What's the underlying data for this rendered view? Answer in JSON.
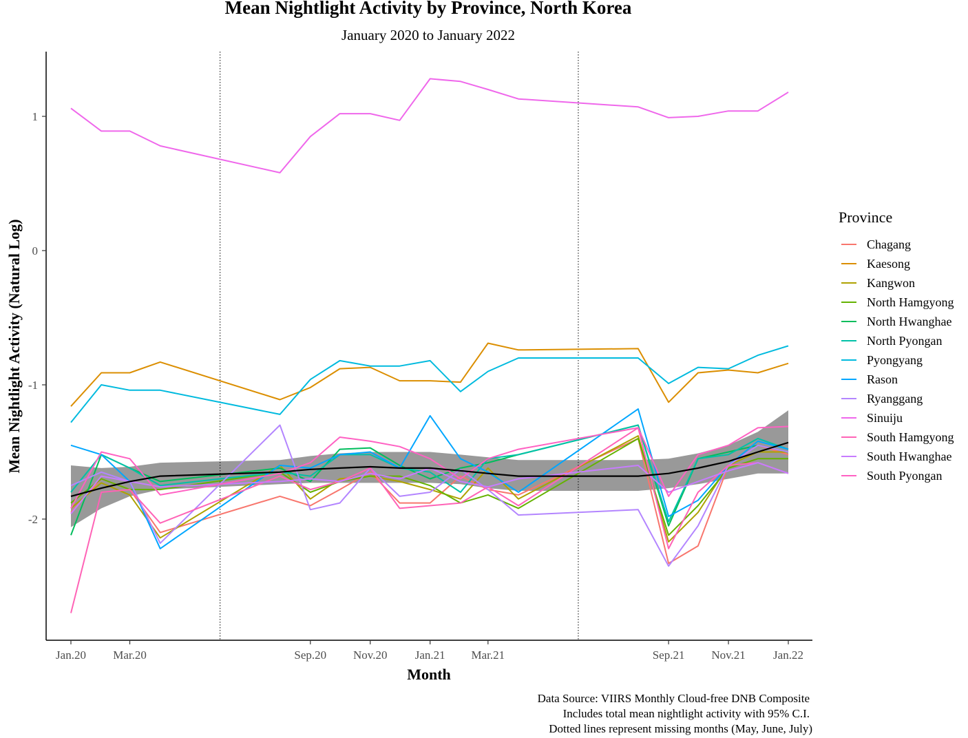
{
  "chart_data": {
    "type": "line",
    "title": "Mean Nightlight Activity by Province, North Korea",
    "subtitle": "January 2020 to January 2022",
    "xlabel": "Month",
    "ylabel": "Mean Nightlight Activity (Natural Log)",
    "x_tick_labels": [
      "Jan.20",
      "Mar.20",
      "Sep.20",
      "Nov.20",
      "Jan.21",
      "Mar.21",
      "Sep.21",
      "Nov.21",
      "Jan.22"
    ],
    "y_ticks": [
      1,
      0,
      -1,
      -2
    ],
    "ylim": [
      -2.88,
      1.48
    ],
    "x_months": [
      "2020-01",
      "2020-02",
      "2020-03",
      "2020-04",
      "2020-08",
      "2020-09",
      "2020-10",
      "2020-11",
      "2020-12",
      "2021-01",
      "2021-02",
      "2021-03",
      "2021-04",
      "2021-08",
      "2021-09",
      "2021-10",
      "2021-11",
      "2021-12",
      "2022-01"
    ],
    "missing_months_markers": [
      "2020-06",
      "2021-06"
    ],
    "legend_title": "Province",
    "legend_position": "right",
    "colors": {
      "Chagang": "#F8766D",
      "Kaesong": "#DB8E00",
      "Kangwon": "#AEA200",
      "North Hamgyong": "#64B200",
      "North Hwanghae": "#00BD5C",
      "North Pyongan": "#00C1A7",
      "Pyongyang": "#00BADE",
      "Rason": "#00A6FF",
      "Ryanggang": "#B385FF",
      "Sinuiju": "#EF67EB",
      "South Hamgyong": "#FF63B6",
      "South Hwanghae": "#C77CFF",
      "South Pyongan": "#FF61C3"
    },
    "series": [
      {
        "name": "Chagang",
        "values": [
          -1.95,
          -1.7,
          -1.78,
          -2.1,
          -1.83,
          -1.9,
          -1.78,
          -1.65,
          -1.88,
          -1.88,
          -1.68,
          -1.78,
          -1.82,
          -1.4,
          -2.33,
          -2.2,
          -1.6,
          -1.45,
          -1.52
        ]
      },
      {
        "name": "Kaesong",
        "values": [
          -1.16,
          -0.91,
          -0.91,
          -0.83,
          -1.11,
          -1.02,
          -0.88,
          -0.87,
          -0.97,
          -0.97,
          -0.98,
          -0.69,
          -0.74,
          -0.73,
          -1.13,
          -0.91,
          -0.89,
          -0.91,
          -0.84
        ]
      },
      {
        "name": "Kangwon",
        "values": [
          -1.92,
          -1.73,
          -1.82,
          -2.14,
          -1.6,
          -1.85,
          -1.7,
          -1.68,
          -1.72,
          -1.78,
          -1.85,
          -1.62,
          -1.85,
          -1.38,
          -2.17,
          -1.95,
          -1.6,
          -1.5,
          -1.5
        ]
      },
      {
        "name": "North Hamgyong",
        "values": [
          -1.88,
          -1.7,
          -1.78,
          -1.78,
          -1.65,
          -1.8,
          -1.72,
          -1.68,
          -1.68,
          -1.75,
          -1.88,
          -1.82,
          -1.92,
          -1.4,
          -2.12,
          -1.9,
          -1.62,
          -1.55,
          -1.55
        ]
      },
      {
        "name": "North Hwanghae",
        "values": [
          -2.12,
          -1.52,
          -1.62,
          -1.72,
          -1.62,
          -1.72,
          -1.48,
          -1.47,
          -1.6,
          -1.7,
          -1.62,
          -1.58,
          -1.52,
          -1.3,
          -2.05,
          -1.55,
          -1.5,
          -1.45,
          -1.5
        ]
      },
      {
        "name": "North Pyongan",
        "values": [
          -1.8,
          -1.52,
          -1.62,
          -1.75,
          -1.65,
          -1.68,
          -1.52,
          -1.52,
          -1.62,
          -1.65,
          -1.8,
          -1.55,
          -1.52,
          -1.3,
          -2.02,
          -1.55,
          -1.52,
          -1.4,
          -1.48
        ]
      },
      {
        "name": "Pyongyang",
        "values": [
          -1.28,
          -1.0,
          -1.04,
          -1.04,
          -1.22,
          -0.96,
          -0.82,
          -0.86,
          -0.86,
          -0.82,
          -1.05,
          -0.9,
          -0.8,
          -0.8,
          -0.99,
          -0.87,
          -0.88,
          -0.78,
          -0.71
        ]
      },
      {
        "name": "Rason",
        "values": [
          -1.45,
          -1.52,
          -1.72,
          -2.22,
          -1.6,
          -1.62,
          -1.52,
          -1.5,
          -1.62,
          -1.23,
          -1.55,
          -1.65,
          -1.8,
          -1.18,
          -1.98,
          -1.86,
          -1.6,
          -1.42,
          -1.48
        ]
      },
      {
        "name": "Ryanggang",
        "values": [
          -1.75,
          -1.65,
          -1.72,
          -2.18,
          -1.3,
          -1.93,
          -1.88,
          -1.62,
          -1.83,
          -1.8,
          -1.63,
          -1.78,
          -1.97,
          -1.93,
          -2.35,
          -2.05,
          -1.6,
          -1.45,
          -1.5
        ]
      },
      {
        "name": "Sinuiju",
        "values": [
          1.06,
          0.89,
          0.89,
          0.78,
          0.58,
          0.85,
          1.02,
          1.02,
          0.97,
          1.28,
          1.26,
          1.2,
          1.13,
          1.07,
          0.99,
          1.0,
          1.04,
          1.04,
          1.18
        ]
      },
      {
        "name": "South Hamgyong",
        "values": [
          -2.7,
          -1.8,
          -1.78,
          -2.03,
          -1.68,
          -1.78,
          -1.72,
          -1.62,
          -1.92,
          -1.9,
          -1.88,
          -1.76,
          -1.9,
          -1.32,
          -2.22,
          -1.8,
          -1.6,
          -1.58,
          -1.66
        ]
      },
      {
        "name": "South Hwanghae",
        "values": [
          -1.96,
          -1.68,
          -1.72,
          -1.76,
          -1.72,
          -1.7,
          -1.72,
          -1.66,
          -1.7,
          -1.62,
          -1.72,
          -1.76,
          -1.7,
          -1.6,
          -1.8,
          -1.72,
          -1.64,
          -1.58,
          -1.66
        ]
      },
      {
        "name": "South Pyongan",
        "values": [
          -1.92,
          -1.5,
          -1.55,
          -1.82,
          -1.66,
          -1.58,
          -1.39,
          -1.42,
          -1.46,
          -1.55,
          -1.7,
          -1.55,
          -1.48,
          -1.32,
          -1.83,
          -1.52,
          -1.45,
          -1.32,
          -1.31
        ]
      }
    ],
    "trend_line": {
      "values": [
        -1.83,
        -1.77,
        -1.72,
        -1.68,
        -1.65,
        -1.63,
        -1.62,
        -1.61,
        -1.62,
        -1.62,
        -1.64,
        -1.66,
        -1.68,
        -1.68,
        -1.66,
        -1.62,
        -1.57,
        -1.5,
        -1.43
      ]
    },
    "confidence_band": {
      "lower": [
        -2.06,
        -1.92,
        -1.83,
        -1.78,
        -1.74,
        -1.73,
        -1.73,
        -1.73,
        -1.73,
        -1.73,
        -1.74,
        -1.77,
        -1.79,
        -1.79,
        -1.77,
        -1.74,
        -1.7,
        -1.66,
        -1.66
      ],
      "upper": [
        -1.6,
        -1.62,
        -1.61,
        -1.58,
        -1.56,
        -1.53,
        -1.51,
        -1.5,
        -1.5,
        -1.5,
        -1.52,
        -1.54,
        -1.56,
        -1.56,
        -1.55,
        -1.51,
        -1.45,
        -1.35,
        -1.19
      ]
    },
    "caption": [
      "Data Source: VIIRS Monthly Cloud-free DNB Composite",
      "Includes total mean nightlight activity with 95% C.I.",
      "Dotted lines represent missing months (May, June, July)"
    ]
  }
}
